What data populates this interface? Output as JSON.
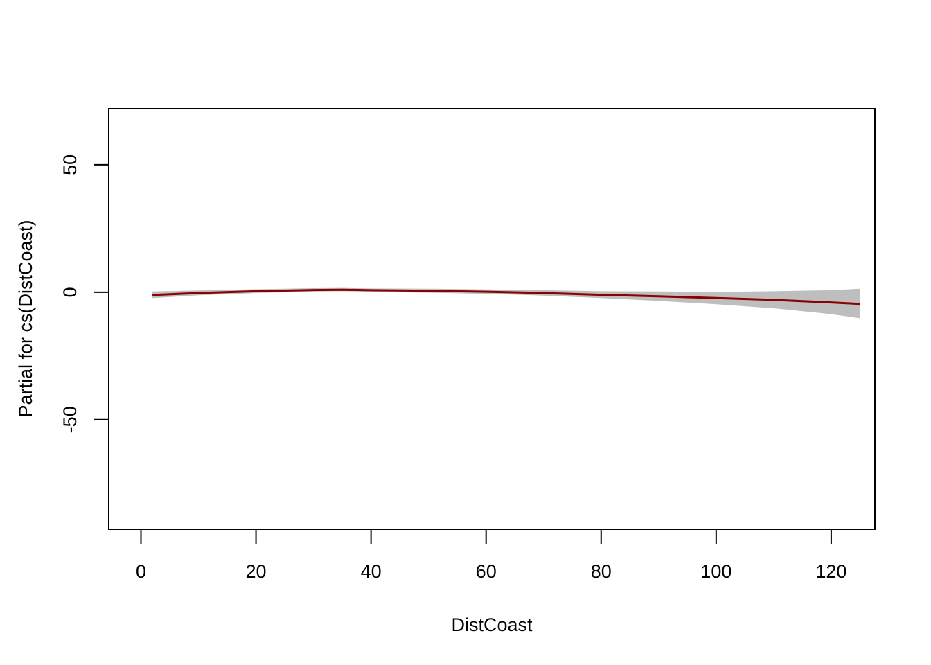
{
  "chart_data": {
    "type": "line",
    "title": "",
    "xlabel": "DistCoast",
    "ylabel": "Partial for cs(DistCoast)",
    "xlim": [
      -5.6,
      127.6
    ],
    "ylim": [
      -93,
      72
    ],
    "x_ticks": [
      0,
      20,
      40,
      60,
      80,
      100,
      120
    ],
    "y_ticks": [
      -50,
      0,
      50
    ],
    "grid": false,
    "series": [
      {
        "x": [
          2,
          10,
          20,
          30,
          35,
          40,
          50,
          60,
          70,
          80,
          90,
          100,
          110,
          120,
          125
        ],
        "y": [
          -1.1,
          -0.3,
          0.4,
          0.9,
          1.0,
          0.8,
          0.6,
          0.2,
          -0.3,
          -1.0,
          -1.6,
          -2.3,
          -3.0,
          -4.0,
          -4.6
        ],
        "lower": [
          -2.3,
          -1.2,
          -0.3,
          0.3,
          0.4,
          0.2,
          -0.2,
          -0.6,
          -1.3,
          -2.3,
          -3.4,
          -4.7,
          -6.3,
          -8.6,
          -10.2
        ],
        "upper": [
          0.3,
          0.7,
          1.2,
          1.6,
          1.7,
          1.5,
          1.4,
          1.1,
          0.8,
          0.4,
          0.3,
          0.1,
          0.4,
          0.8,
          1.4
        ]
      }
    ],
    "colors": {
      "line": "#8b0000",
      "band": "#bebebe",
      "axis": "#000000"
    }
  }
}
